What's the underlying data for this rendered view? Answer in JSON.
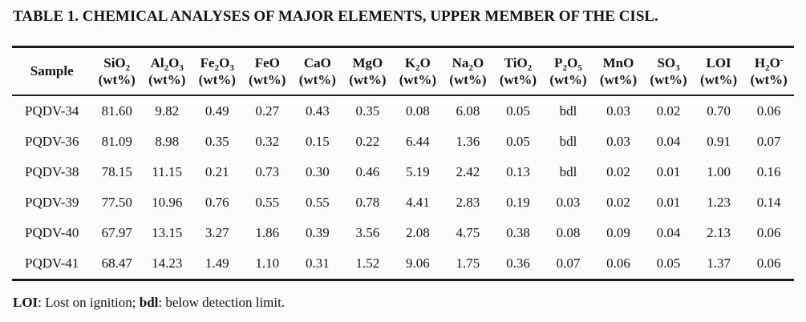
{
  "page": {
    "title": "TABLE 1. CHEMICAL ANALYSES OF MAJOR ELEMENTS, UPPER MEMBER OF THE CISL.",
    "footnote": {
      "term1": "LOI",
      "def1": ": Lost on ignition; ",
      "term2": "bdl",
      "def2": ": below detection limit."
    }
  },
  "colors": {
    "text": "#151515",
    "rule": "#1c1c1c",
    "background": "#fcfcfc"
  },
  "table": {
    "columns": [
      {
        "key": "sample",
        "parts": [
          [
            "t",
            "Sample"
          ]
        ],
        "unit": ""
      },
      {
        "key": "SiO2",
        "parts": [
          [
            "t",
            "SiO"
          ],
          [
            "s",
            "2"
          ]
        ],
        "unit": "(wt%)"
      },
      {
        "key": "Al2O3",
        "parts": [
          [
            "t",
            "Al"
          ],
          [
            "s",
            "2"
          ],
          [
            "t",
            "O"
          ],
          [
            "s",
            "3"
          ]
        ],
        "unit": "(wt%)"
      },
      {
        "key": "Fe2O3",
        "parts": [
          [
            "t",
            "Fe"
          ],
          [
            "s",
            "2"
          ],
          [
            "t",
            "O"
          ],
          [
            "s",
            "3"
          ]
        ],
        "unit": "(wt%)"
      },
      {
        "key": "FeO",
        "parts": [
          [
            "t",
            "FeO"
          ]
        ],
        "unit": "(wt%)"
      },
      {
        "key": "CaO",
        "parts": [
          [
            "t",
            "CaO"
          ]
        ],
        "unit": "(wt%)"
      },
      {
        "key": "MgO",
        "parts": [
          [
            "t",
            "MgO"
          ]
        ],
        "unit": "(wt%)"
      },
      {
        "key": "K2O",
        "parts": [
          [
            "t",
            "K"
          ],
          [
            "s",
            "2"
          ],
          [
            "t",
            "O"
          ]
        ],
        "unit": "(wt%)"
      },
      {
        "key": "Na2O",
        "parts": [
          [
            "t",
            "Na"
          ],
          [
            "s",
            "2"
          ],
          [
            "t",
            "O"
          ]
        ],
        "unit": "(wt%)"
      },
      {
        "key": "TiO2",
        "parts": [
          [
            "t",
            "TiO"
          ],
          [
            "s",
            "2"
          ]
        ],
        "unit": "(wt%)"
      },
      {
        "key": "P2O5",
        "parts": [
          [
            "t",
            "P"
          ],
          [
            "s",
            "2"
          ],
          [
            "t",
            "O"
          ],
          [
            "s",
            "5"
          ]
        ],
        "unit": "(wt%)"
      },
      {
        "key": "MnO",
        "parts": [
          [
            "t",
            "MnO"
          ]
        ],
        "unit": "(wt%)"
      },
      {
        "key": "SO3",
        "parts": [
          [
            "t",
            "SO"
          ],
          [
            "s",
            "3"
          ]
        ],
        "unit": "(wt%)"
      },
      {
        "key": "LOI",
        "parts": [
          [
            "t",
            "LOI"
          ]
        ],
        "unit": "(wt%)"
      },
      {
        "key": "H2O-",
        "parts": [
          [
            "t",
            "H"
          ],
          [
            "s",
            "2"
          ],
          [
            "t",
            "O"
          ],
          [
            "p",
            "-"
          ]
        ],
        "unit": "(wt%)"
      }
    ],
    "rows": [
      {
        "sample": "PQDV-34",
        "values": [
          "81.60",
          "9.82",
          "0.49",
          "0.27",
          "0.43",
          "0.35",
          "0.08",
          "6.08",
          "0.05",
          "bdl",
          "0.03",
          "0.02",
          "0.70",
          "0.06"
        ]
      },
      {
        "sample": "PQDV-36",
        "values": [
          "81.09",
          "8.98",
          "0.35",
          "0.32",
          "0.15",
          "0.22",
          "6.44",
          "1.36",
          "0.05",
          "bdl",
          "0.03",
          "0.04",
          "0.91",
          "0.07"
        ]
      },
      {
        "sample": "PQDV-38",
        "values": [
          "78.15",
          "11.15",
          "0.21",
          "0.73",
          "0.30",
          "0.46",
          "5.19",
          "2.42",
          "0.13",
          "bdl",
          "0.02",
          "0.01",
          "1.00",
          "0.16"
        ]
      },
      {
        "sample": "PQDV-39",
        "values": [
          "77.50",
          "10.96",
          "0.76",
          "0.55",
          "0.55",
          "0.78",
          "4.41",
          "2.83",
          "0.19",
          "0.03",
          "0.02",
          "0.01",
          "1.23",
          "0.14"
        ]
      },
      {
        "sample": "PQDV-40",
        "values": [
          "67.97",
          "13.15",
          "3.27",
          "1.86",
          "0.39",
          "3.56",
          "2.08",
          "4.75",
          "0.38",
          "0.08",
          "0.09",
          "0.04",
          "2.13",
          "0.06"
        ]
      },
      {
        "sample": "PQDV-41",
        "values": [
          "68.47",
          "14.23",
          "1.49",
          "1.10",
          "0.31",
          "1.52",
          "9.06",
          "1.75",
          "0.36",
          "0.07",
          "0.06",
          "0.05",
          "1.37",
          "0.06"
        ]
      }
    ]
  }
}
